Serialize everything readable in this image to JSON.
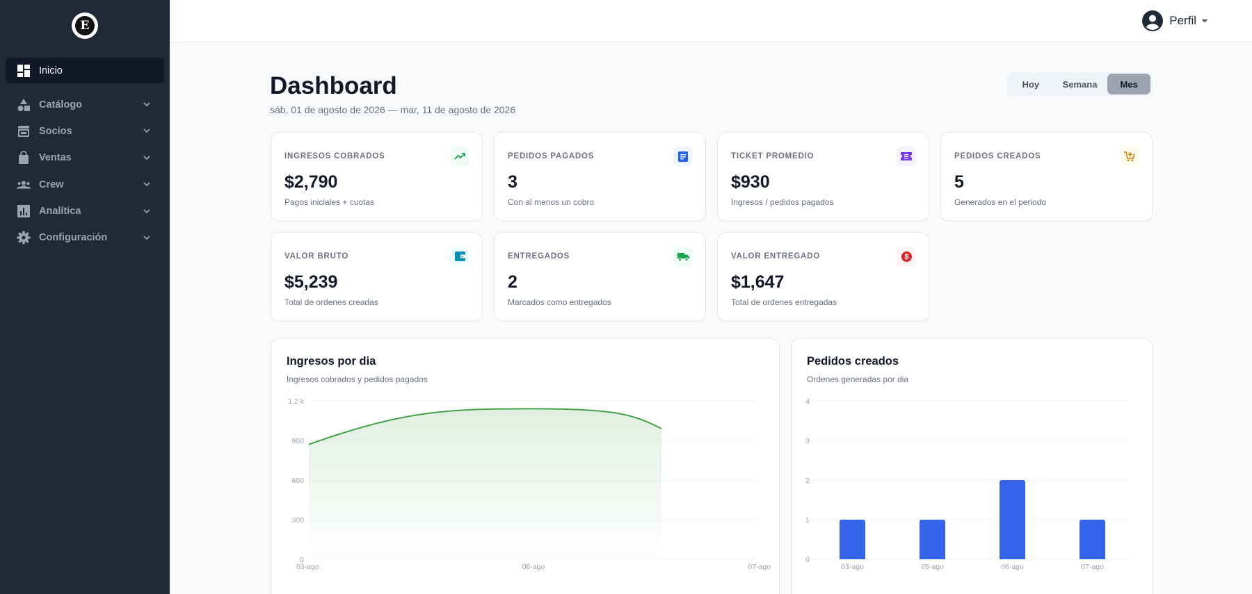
{
  "app": {
    "logo_letter": "E"
  },
  "sidebar": {
    "items": [
      {
        "label": "Inicio",
        "icon": "dashboard-icon",
        "active": true
      },
      {
        "label": "Catálogo",
        "icon": "shapes-icon"
      },
      {
        "label": "Socios",
        "icon": "store-icon"
      },
      {
        "label": "Ventas",
        "icon": "shopping-bag-icon"
      },
      {
        "label": "Crew",
        "icon": "group-icon"
      },
      {
        "label": "Analítica",
        "icon": "analytics-icon"
      },
      {
        "label": "Configuración",
        "icon": "gear-icon"
      }
    ]
  },
  "topbar": {
    "profile_label": "Perfil"
  },
  "header": {
    "title": "Dashboard",
    "date_range": "sáb, 01 de agosto de 2026 — mar, 11 de agosto de 2026",
    "periods": [
      "Hoy",
      "Semana",
      "Mes"
    ],
    "selected_period": "Mes"
  },
  "kpis": [
    {
      "label": "INGRESOS COBRADOS",
      "value": "$2,790",
      "sub": "Pagos iniciales + cuotas",
      "icon": "trending-up-icon",
      "color": "#16a34a"
    },
    {
      "label": "PEDIDOS PAGADOS",
      "value": "3",
      "sub": "Con al menos un cobro",
      "icon": "receipt-icon",
      "color": "#2563eb"
    },
    {
      "label": "TICKET PROMEDIO",
      "value": "$930",
      "sub": "Ingresos / pedidos pagados",
      "icon": "ticket-icon",
      "color": "#7c3aed"
    },
    {
      "label": "PEDIDOS CREADOS",
      "value": "5",
      "sub": "Generados en el periodo",
      "icon": "cart-add-icon",
      "color": "#d97706"
    },
    {
      "label": "VALOR BRUTO",
      "value": "$5,239",
      "sub": "Total de ordenes creadas",
      "icon": "wallet-icon",
      "color": "#0891b2"
    },
    {
      "label": "ENTREGADOS",
      "value": "2",
      "sub": "Marcados como entregados",
      "icon": "truck-icon",
      "color": "#16a34a"
    },
    {
      "label": "VALOR ENTREGADO",
      "value": "$1,647",
      "sub": "Total de ordenes entregadas",
      "icon": "dollar-coin-icon",
      "color": "#dc2626"
    }
  ],
  "charts": {
    "income": {
      "title": "Ingresos por dia",
      "subtitle": "Ingresos cobrados y pedidos pagados"
    },
    "orders": {
      "title": "Pedidos creados",
      "subtitle": "Ordenes generadas por dia"
    }
  },
  "chart_data": [
    {
      "type": "area",
      "title": "Ingresos por dia",
      "x": [
        "03-ago",
        "06-ago",
        "07-ago"
      ],
      "x_ticks": [
        "03-ago",
        "06-ago",
        "07-ago"
      ],
      "series": [
        {
          "points": [
            {
              "x": 0,
              "y": 870
            },
            {
              "x": 1,
              "y": 1140
            },
            {
              "x": 1.57,
              "y": 990
            }
          ]
        }
      ],
      "ylim": [
        0,
        1200
      ],
      "y_ticks": [
        "0",
        "300",
        "600",
        "900",
        "1.2 k"
      ],
      "color": "#43a047",
      "grid": true
    },
    {
      "type": "bar",
      "title": "Pedidos creados",
      "categories": [
        "03-ago",
        "05-ago",
        "06-ago",
        "07-ago"
      ],
      "values": [
        1,
        1,
        2,
        1
      ],
      "ylim": [
        0,
        4
      ],
      "y_ticks": [
        "0",
        "1",
        "2",
        "3",
        "4"
      ],
      "color": "#3563e9",
      "grid": true
    }
  ]
}
